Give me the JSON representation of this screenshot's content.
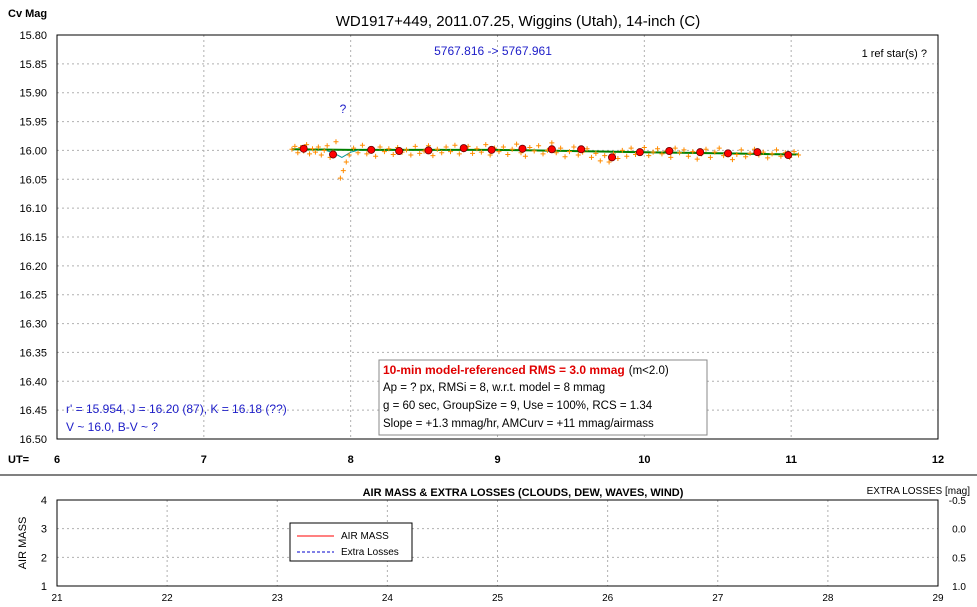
{
  "chart_data": [
    {
      "type": "scatter",
      "title": "WD1917+449, 2011.07.25, Wiggins (Utah), 14-inch (C)",
      "ylabel": "Cv Mag",
      "xlabel": "UT=",
      "xlim": [
        6,
        12
      ],
      "ylim": [
        15.8,
        16.5
      ],
      "y_inverted": true,
      "grid": true,
      "x_ticks": [
        "6",
        "7",
        "8",
        "9",
        "10",
        "11",
        "12"
      ],
      "y_ticks": [
        "15.80",
        "15.85",
        "15.90",
        "15.95",
        "16.00",
        "16.05",
        "16.10",
        "16.15",
        "16.20",
        "16.25",
        "16.30",
        "16.35",
        "16.40",
        "16.45",
        "16.50"
      ],
      "annotations": {
        "jd_range": "5767.816 -> 5767.961",
        "ref_stars": "1 ref star(s) ?",
        "question_mark": "?",
        "mags_line": "r' = 15.954, J = 16.20 (87), K = 16.18 (??)",
        "color_line": "V ~ 16.0, B-V ~ ?"
      },
      "stats_box": {
        "rms_label": "10-min model-referenced RMS = 3.0 mmag",
        "rms_note": "(m<2.0)",
        "line2": "Ap = ? px, RMSi = 8, w.r.t. model = 8 mmag",
        "line3": "g = 60 sec, GroupSize = 9, Use = 100%, RCS = 1.34",
        "line4": "Slope = +1.3 mmag/hr, AMCurv = +11 mmag/airmass"
      },
      "colors": {
        "individual": "#ff8c00",
        "group": "#ff0000",
        "model": "#008000",
        "model_alt": "#009999",
        "annotation": "#1c1cc8"
      },
      "series": [
        {
          "values": [
            {
              "x": 7.6,
              "y": 15.998
            },
            {
              "x": 7.62,
              "y": 15.993
            },
            {
              "x": 7.64,
              "y": 16.004
            },
            {
              "x": 7.66,
              "y": 15.995
            },
            {
              "x": 7.68,
              "y": 16.001
            },
            {
              "x": 7.7,
              "y": 15.99
            },
            {
              "x": 7.72,
              "y": 16.006
            },
            {
              "x": 7.74,
              "y": 15.997
            },
            {
              "x": 7.76,
              "y": 16.003
            },
            {
              "x": 7.78,
              "y": 15.994
            },
            {
              "x": 7.8,
              "y": 16.008
            },
            {
              "x": 7.82,
              "y": 16.0
            },
            {
              "x": 7.84,
              "y": 15.992
            },
            {
              "x": 7.86,
              "y": 16.012
            },
            {
              "x": 7.88,
              "y": 16.003
            },
            {
              "x": 7.9,
              "y": 15.985
            },
            {
              "x": 7.93,
              "y": 16.048
            },
            {
              "x": 7.95,
              "y": 16.035
            },
            {
              "x": 7.97,
              "y": 16.02
            },
            {
              "x": 7.99,
              "y": 16.008
            },
            {
              "x": 8.02,
              "y": 15.996
            },
            {
              "x": 8.05,
              "y": 16.004
            },
            {
              "x": 8.08,
              "y": 15.991
            },
            {
              "x": 8.11,
              "y": 16.006
            },
            {
              "x": 8.14,
              "y": 15.999
            },
            {
              "x": 8.17,
              "y": 16.01
            },
            {
              "x": 8.2,
              "y": 15.994
            },
            {
              "x": 8.23,
              "y": 16.002
            },
            {
              "x": 8.26,
              "y": 15.997
            },
            {
              "x": 8.29,
              "y": 16.007
            },
            {
              "x": 8.32,
              "y": 15.995
            },
            {
              "x": 8.35,
              "y": 16.003
            },
            {
              "x": 8.38,
              "y": 15.999
            },
            {
              "x": 8.41,
              "y": 16.008
            },
            {
              "x": 8.44,
              "y": 15.993
            },
            {
              "x": 8.47,
              "y": 16.005
            },
            {
              "x": 8.5,
              "y": 16.001
            },
            {
              "x": 8.53,
              "y": 15.992
            },
            {
              "x": 8.56,
              "y": 16.009
            },
            {
              "x": 8.59,
              "y": 15.998
            },
            {
              "x": 8.62,
              "y": 16.004
            },
            {
              "x": 8.65,
              "y": 15.994
            },
            {
              "x": 8.68,
              "y": 16.002
            },
            {
              "x": 8.71,
              "y": 15.991
            },
            {
              "x": 8.74,
              "y": 16.006
            },
            {
              "x": 8.77,
              "y": 15.999
            },
            {
              "x": 8.8,
              "y": 15.993
            },
            {
              "x": 8.83,
              "y": 16.005
            },
            {
              "x": 8.86,
              "y": 15.997
            },
            {
              "x": 8.89,
              "y": 16.003
            },
            {
              "x": 8.92,
              "y": 15.99
            },
            {
              "x": 8.95,
              "y": 16.008
            },
            {
              "x": 8.98,
              "y": 15.996
            },
            {
              "x": 9.01,
              "y": 16.002
            },
            {
              "x": 9.04,
              "y": 15.994
            },
            {
              "x": 9.07,
              "y": 16.007
            },
            {
              "x": 9.1,
              "y": 15.998
            },
            {
              "x": 9.13,
              "y": 15.989
            },
            {
              "x": 9.16,
              "y": 16.004
            },
            {
              "x": 9.19,
              "y": 16.01
            },
            {
              "x": 9.22,
              "y": 15.995
            },
            {
              "x": 9.25,
              "y": 16.001
            },
            {
              "x": 9.28,
              "y": 15.992
            },
            {
              "x": 9.31,
              "y": 16.006
            },
            {
              "x": 9.34,
              "y": 16.0
            },
            {
              "x": 9.37,
              "y": 15.987
            },
            {
              "x": 9.4,
              "y": 16.004
            },
            {
              "x": 9.43,
              "y": 15.996
            },
            {
              "x": 9.46,
              "y": 16.011
            },
            {
              "x": 9.49,
              "y": 16.002
            },
            {
              "x": 9.52,
              "y": 15.994
            },
            {
              "x": 9.55,
              "y": 16.008
            },
            {
              "x": 9.58,
              "y": 16.003
            },
            {
              "x": 9.61,
              "y": 15.997
            },
            {
              "x": 9.64,
              "y": 16.012
            },
            {
              "x": 9.67,
              "y": 16.005
            },
            {
              "x": 9.7,
              "y": 16.018
            },
            {
              "x": 9.73,
              "y": 16.009
            },
            {
              "x": 9.76,
              "y": 16.02
            },
            {
              "x": 9.79,
              "y": 16.006
            },
            {
              "x": 9.82,
              "y": 16.014
            },
            {
              "x": 9.85,
              "y": 16.0
            },
            {
              "x": 9.88,
              "y": 16.01
            },
            {
              "x": 9.91,
              "y": 15.996
            },
            {
              "x": 9.94,
              "y": 16.007
            },
            {
              "x": 9.97,
              "y": 16.002
            },
            {
              "x": 10.0,
              "y": 15.995
            },
            {
              "x": 10.03,
              "y": 16.009
            },
            {
              "x": 10.06,
              "y": 16.003
            },
            {
              "x": 10.09,
              "y": 15.997
            },
            {
              "x": 10.12,
              "y": 16.006
            },
            {
              "x": 10.15,
              "y": 16.001
            },
            {
              "x": 10.18,
              "y": 16.012
            },
            {
              "x": 10.21,
              "y": 15.996
            },
            {
              "x": 10.24,
              "y": 16.004
            },
            {
              "x": 10.27,
              "y": 15.999
            },
            {
              "x": 10.3,
              "y": 16.01
            },
            {
              "x": 10.33,
              "y": 16.002
            },
            {
              "x": 10.36,
              "y": 16.015
            },
            {
              "x": 10.39,
              "y": 16.006
            },
            {
              "x": 10.42,
              "y": 15.998
            },
            {
              "x": 10.45,
              "y": 16.012
            },
            {
              "x": 10.48,
              "y": 16.003
            },
            {
              "x": 10.51,
              "y": 15.996
            },
            {
              "x": 10.54,
              "y": 16.009
            },
            {
              "x": 10.57,
              "y": 16.004
            },
            {
              "x": 10.6,
              "y": 16.016
            },
            {
              "x": 10.63,
              "y": 16.007
            },
            {
              "x": 10.66,
              "y": 15.999
            },
            {
              "x": 10.69,
              "y": 16.011
            },
            {
              "x": 10.72,
              "y": 16.005
            },
            {
              "x": 10.75,
              "y": 15.998
            },
            {
              "x": 10.78,
              "y": 16.008
            },
            {
              "x": 10.81,
              "y": 16.003
            },
            {
              "x": 10.84,
              "y": 16.013
            },
            {
              "x": 10.87,
              "y": 16.006
            },
            {
              "x": 10.9,
              "y": 15.999
            },
            {
              "x": 10.93,
              "y": 16.01
            },
            {
              "x": 10.96,
              "y": 16.004
            },
            {
              "x": 10.99,
              "y": 16.012
            },
            {
              "x": 11.02,
              "y": 16.002
            },
            {
              "x": 11.05,
              "y": 16.008
            }
          ]
        },
        {
          "values": [
            {
              "x": 7.68,
              "y": 15.997
            },
            {
              "x": 7.88,
              "y": 16.007
            },
            {
              "x": 8.14,
              "y": 15.999
            },
            {
              "x": 8.33,
              "y": 16.001
            },
            {
              "x": 8.53,
              "y": 16.0
            },
            {
              "x": 8.77,
              "y": 15.996
            },
            {
              "x": 8.96,
              "y": 15.999
            },
            {
              "x": 9.17,
              "y": 15.997
            },
            {
              "x": 9.37,
              "y": 15.998
            },
            {
              "x": 9.57,
              "y": 15.998
            },
            {
              "x": 9.78,
              "y": 16.012
            },
            {
              "x": 9.97,
              "y": 16.003
            },
            {
              "x": 10.17,
              "y": 16.001
            },
            {
              "x": 10.38,
              "y": 16.003
            },
            {
              "x": 10.57,
              "y": 16.005
            },
            {
              "x": 10.77,
              "y": 16.003
            },
            {
              "x": 10.98,
              "y": 16.008
            }
          ]
        },
        {
          "values": [
            {
              "x": 7.6,
              "y": 15.998
            },
            {
              "x": 8.0,
              "y": 15.999
            },
            {
              "x": 8.5,
              "y": 15.999
            },
            {
              "x": 9.0,
              "y": 15.999
            },
            {
              "x": 9.5,
              "y": 16.001
            },
            {
              "x": 10.0,
              "y": 16.003
            },
            {
              "x": 10.5,
              "y": 16.005
            },
            {
              "x": 11.05,
              "y": 16.007
            }
          ]
        },
        {
          "values": [
            {
              "x": 7.82,
              "y": 15.999
            },
            {
              "x": 7.88,
              "y": 16.004
            },
            {
              "x": 7.94,
              "y": 16.012
            },
            {
              "x": 8.0,
              "y": 16.003
            },
            {
              "x": 8.06,
              "y": 15.999
            }
          ]
        }
      ]
    },
    {
      "type": "line",
      "title": "AIR MASS & EXTRA LOSSES (CLOUDS, DEW, WAVES, WIND)",
      "ylabel": "AIR MASS",
      "y2label": "EXTRA LOSSES [mag]",
      "xlim": [
        21,
        29
      ],
      "ylim": [
        1,
        4
      ],
      "y2lim": [
        1.0,
        -0.5
      ],
      "grid": true,
      "x_ticks": [
        "21",
        "22",
        "23",
        "24",
        "25",
        "26",
        "27",
        "28",
        "29"
      ],
      "y_ticks": [
        "1",
        "2",
        "3",
        "4"
      ],
      "y2_ticks": [
        "-0.5",
        "0.0",
        "0.5",
        "1.0"
      ],
      "legend": {
        "position": "left",
        "entries": [
          "AIR MASS",
          "Extra Losses"
        ]
      },
      "colors": {
        "air_mass": "#ff0000",
        "extra_losses": "#0000cc"
      },
      "series": [
        {
          "name": "AIR MASS",
          "values": []
        },
        {
          "name": "Extra Losses",
          "values": []
        }
      ]
    }
  ]
}
